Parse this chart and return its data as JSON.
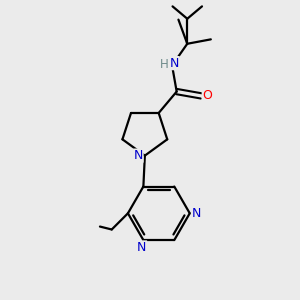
{
  "background_color": "#ebebeb",
  "bond_color": "#000000",
  "N_color": "#0000cc",
  "O_color": "#ff0000",
  "H_color": "#6e8b8b",
  "figsize": [
    3.0,
    3.0
  ],
  "dpi": 100,
  "xlim": [
    0,
    10
  ],
  "ylim": [
    0,
    10
  ]
}
